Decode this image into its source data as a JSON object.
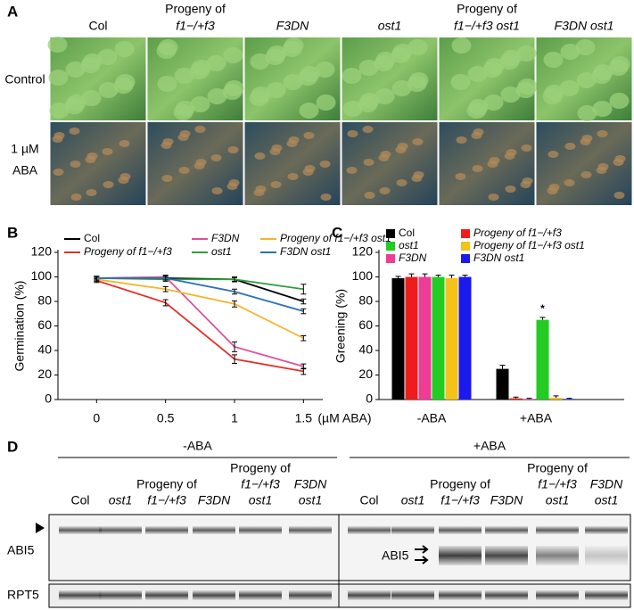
{
  "panel_a": {
    "label": "A",
    "columns": [
      [
        "Col"
      ],
      [
        "Progeny of",
        "f1−/+f3"
      ],
      [
        "F3DN"
      ],
      [
        "ost1"
      ],
      [
        "Progeny of",
        "f1−/+f3  ost1"
      ],
      [
        "F3DN  ost1"
      ]
    ],
    "rows": [
      [
        "Control"
      ],
      [
        "1  µM",
        "ABA"
      ]
    ]
  },
  "chart_data": [
    {
      "type": "line",
      "panel": "B",
      "ylabel": "Germination (%)",
      "xlabel": "(µM ABA)",
      "x": [
        0,
        0.5,
        1,
        1.5
      ],
      "xlim": [
        -0.28,
        1.64
      ],
      "xticks": [
        0,
        0.5,
        1,
        {
          "value": 1.5,
          "label": "1.5"
        }
      ],
      "ylim": [
        0,
        120
      ],
      "yticks": [
        0,
        20,
        40,
        60,
        80,
        100,
        120
      ],
      "series": [
        {
          "name": "Col",
          "color": "#000000",
          "values": [
            99,
            99,
            98,
            80
          ],
          "errors": [
            1.5,
            1.5,
            1.5,
            2
          ]
        },
        {
          "name": "Progeny of  f1−/+f3",
          "color": "#e0312a",
          "values": [
            97,
            79,
            33,
            23
          ],
          "errors": [
            1.5,
            2.5,
            3.5,
            2.5
          ]
        },
        {
          "name": "F3DN",
          "color": "#e0509a",
          "values": [
            99,
            100,
            43,
            27
          ],
          "errors": [
            1.5,
            1.5,
            4,
            2
          ]
        },
        {
          "name": "ost1",
          "color": "#2e9e3e",
          "values": [
            99,
            98,
            98,
            90
          ],
          "errors": [
            1.5,
            1.5,
            2,
            4
          ]
        },
        {
          "name": "Progeny of  f1−/+f3 ost1",
          "color": "#f2b62a",
          "values": [
            98,
            90,
            78,
            50
          ],
          "errors": [
            1.5,
            2,
            2.5,
            2
          ]
        },
        {
          "name": "F3DN ost1",
          "color": "#2e6fb7",
          "values": [
            99,
            99,
            88,
            72
          ],
          "errors": [
            1.5,
            1.5,
            2,
            2
          ]
        }
      ]
    },
    {
      "type": "bar",
      "panel": "C",
      "ylabel": "Greening (%)",
      "categories": [
        "-ABA",
        "+ABA"
      ],
      "ylim": [
        0,
        120
      ],
      "yticks": [
        0,
        20,
        40,
        60,
        80,
        100,
        120
      ],
      "annotation": "*",
      "series": [
        {
          "name": "Col",
          "color": "#000000",
          "values": [
            99,
            25
          ],
          "errors": [
            1.5,
            3
          ]
        },
        {
          "name": "Progeny of  f1−/+f3",
          "color": "#ee1c1c",
          "values": [
            100,
            1
          ],
          "errors": [
            2.5,
            1
          ]
        },
        {
          "name": "F3DN",
          "color": "#ee3d96",
          "values": [
            100,
            0.5
          ],
          "errors": [
            2.5,
            0.5
          ]
        },
        {
          "name": "ost1",
          "color": "#22cc22",
          "values": [
            100,
            65
          ],
          "errors": [
            1.5,
            2
          ]
        },
        {
          "name": "Progeny of  f1−/+f3 ost1",
          "color": "#f4c21a",
          "values": [
            99,
            1.5
          ],
          "errors": [
            2.5,
            1.5
          ]
        },
        {
          "name": "F3DN ost1",
          "color": "#1a1aee",
          "values": [
            100,
            0.5
          ],
          "errors": [
            1.5,
            0.5
          ]
        }
      ]
    }
  ],
  "panel_d": {
    "label": "D",
    "groups": [
      "-ABA",
      "+ABA"
    ],
    "lanes": [
      [
        "Col"
      ],
      [
        "ost1"
      ],
      [
        "Progeny of",
        "f1−/+f3"
      ],
      [
        "F3DN"
      ],
      [
        "Progeny of",
        "f1−/+f3",
        "ost1"
      ],
      [
        "F3DN",
        "ost1"
      ]
    ],
    "blots": [
      "ABI5",
      "RPT5"
    ],
    "inner_label": "ABI5"
  }
}
